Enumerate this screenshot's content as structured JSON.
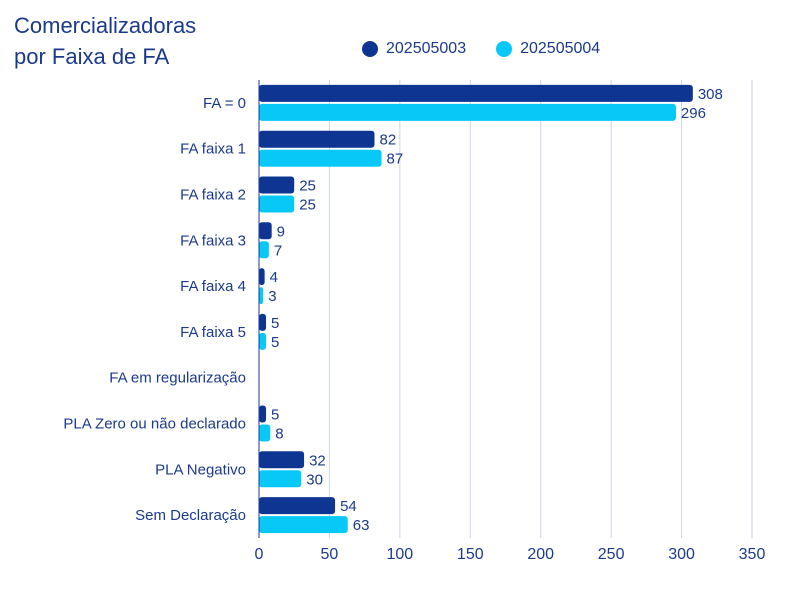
{
  "chart_data": {
    "type": "bar",
    "orientation": "horizontal",
    "title_lines": [
      "Comercializadoras",
      "por Faixa de FA"
    ],
    "categories": [
      "FA = 0",
      "FA faixa 1",
      "FA faixa 2",
      "FA faixa 3",
      "FA faixa 4",
      "FA faixa 5",
      "FA em regularização",
      "PLA Zero ou não declarado",
      "PLA Negativo",
      "Sem Declaração"
    ],
    "series": [
      {
        "name": "202505003",
        "color": "#0f3593",
        "values": [
          308,
          82,
          25,
          9,
          4,
          5,
          null,
          5,
          32,
          54
        ]
      },
      {
        "name": "202505004",
        "color": "#08c8f8",
        "values": [
          296,
          87,
          25,
          7,
          3,
          5,
          null,
          8,
          30,
          63
        ]
      }
    ],
    "xlim": [
      0,
      350
    ],
    "xticks": [
      0,
      50,
      100,
      150,
      200,
      250,
      300,
      350
    ],
    "grid": true,
    "legend_position": "top"
  }
}
